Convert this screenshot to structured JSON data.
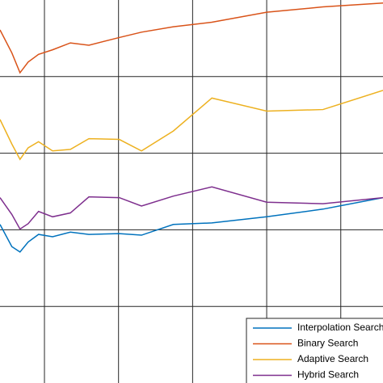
{
  "chart_data": {
    "type": "line",
    "x": [
      0.4,
      0.56,
      0.67,
      0.78,
      0.92,
      1.11,
      1.35,
      1.6,
      2.01,
      2.31,
      2.74,
      3.26,
      4.0,
      4.76,
      5.57
    ],
    "series": [
      {
        "name": "Interpolation Search",
        "color": "#0072bd",
        "values": [
          2.07,
          1.78,
          1.71,
          1.84,
          1.94,
          1.91,
          1.97,
          1.94,
          1.95,
          1.93,
          2.07,
          2.09,
          2.17,
          2.27,
          2.42
        ]
      },
      {
        "name": "Binary Search",
        "color": "#d95319",
        "values": [
          4.61,
          4.31,
          4.05,
          4.19,
          4.29,
          4.35,
          4.44,
          4.41,
          4.51,
          4.58,
          4.65,
          4.71,
          4.84,
          4.91,
          4.96
        ]
      },
      {
        "name": "Adaptive Search",
        "color": "#edb120",
        "values": [
          3.44,
          3.12,
          2.92,
          3.07,
          3.15,
          3.03,
          3.05,
          3.19,
          3.18,
          3.03,
          3.29,
          3.72,
          3.55,
          3.57,
          3.82
        ]
      },
      {
        "name": "Hybrid Search",
        "color": "#7e2f8e",
        "values": [
          2.42,
          2.2,
          2.01,
          2.08,
          2.24,
          2.17,
          2.22,
          2.43,
          2.42,
          2.31,
          2.44,
          2.56,
          2.36,
          2.34,
          2.42
        ]
      }
    ],
    "xlim": [
      0.4,
      5.57
    ],
    "xticks": [
      1,
      2,
      3,
      4,
      5
    ],
    "ylim": [
      0,
      5
    ],
    "yticks": [
      1,
      2,
      3,
      4
    ],
    "grid": true,
    "legend": "lower right"
  }
}
